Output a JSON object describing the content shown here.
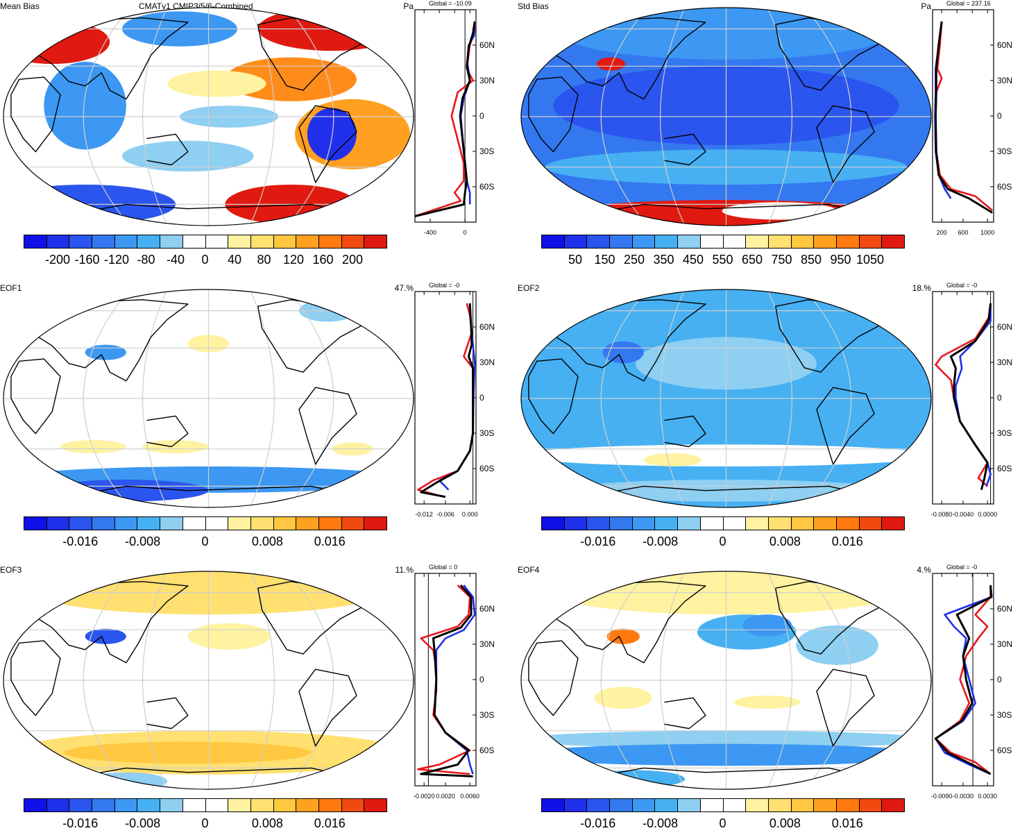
{
  "suptitle": "CMATv1 CMIP3/5/6-Combined",
  "lat_ticks": [
    "60N",
    "30N",
    "0",
    "30S",
    "60S"
  ],
  "colors": {
    "blue_dark": "#1e1ee6",
    "blue_mid": "#2e7cf0",
    "blue_light": "#3cb3ee",
    "blue_pale": "#8ed0f0",
    "yellow_pale": "#fff2a0",
    "yellow": "#ffd54a",
    "orange": "#ff8c1a",
    "red": "#e61e14",
    "land_outline": "#000000",
    "grid": "#cfcfcf",
    "line_red": "#e8161b",
    "line_blue": "#1f2ee6",
    "line_black": "#000000"
  },
  "panels": [
    {
      "id": "mean-bias",
      "title": "Mean Bias",
      "unit": "Pa",
      "global": "Global = -10.09",
      "profile_ticks": [
        "-400",
        "0"
      ],
      "colorbar_labels": [
        "-200",
        "-160",
        "-120",
        "-80",
        "-40",
        "0",
        "40",
        "80",
        "120",
        "160",
        "200"
      ],
      "colorbar_colors": [
        "#1010e8",
        "#2030ea",
        "#2a55ee",
        "#3478f0",
        "#3c98f2",
        "#46b0f2",
        "#8ecff2",
        "#ffffff",
        "#ffffff",
        "#fff2a0",
        "#ffe070",
        "#ffc840",
        "#ffa020",
        "#ff7a10",
        "#f04a10",
        "#e01a10"
      ]
    },
    {
      "id": "std-bias",
      "title": "Std Bias",
      "unit": "Pa",
      "global": "Global = 237.16",
      "profile_ticks": [
        "200",
        "600",
        "1000"
      ],
      "colorbar_labels": [
        "50",
        "150",
        "250",
        "350",
        "450",
        "550",
        "650",
        "750",
        "850",
        "950",
        "1050"
      ],
      "colorbar_colors": [
        "#1010e8",
        "#2030ea",
        "#2a55ee",
        "#3478f0",
        "#3c98f2",
        "#46b0f2",
        "#8ecff2",
        "#ffffff",
        "#ffffff",
        "#fff2a0",
        "#ffe070",
        "#ffc840",
        "#ffa020",
        "#ff7a10",
        "#f04a10",
        "#e01a10"
      ]
    },
    {
      "id": "eof1",
      "title": "EOF1",
      "unit": "47.%",
      "global": "Global = -0",
      "profile_ticks": [
        "-0.012",
        "-0.006",
        "0.000"
      ],
      "colorbar_labels": [
        "-0.016",
        "-0.008",
        "0",
        "0.008",
        "0.016"
      ],
      "colorbar_colors": [
        "#1010e8",
        "#2030ea",
        "#2a55ee",
        "#3478f0",
        "#3c98f2",
        "#46b0f2",
        "#8ecff2",
        "#ffffff",
        "#ffffff",
        "#fff2a0",
        "#ffe070",
        "#ffc840",
        "#ffa020",
        "#ff7a10",
        "#f04a10",
        "#e01a10"
      ]
    },
    {
      "id": "eof2",
      "title": "EOF2",
      "unit": "18.%",
      "global": "Global = -0",
      "profile_ticks": [
        "-0.0080",
        "-0.0040",
        "0.0000"
      ],
      "colorbar_labels": [
        "-0.016",
        "-0.008",
        "0",
        "0.008",
        "0.016"
      ],
      "colorbar_colors": [
        "#1010e8",
        "#2030ea",
        "#2a55ee",
        "#3478f0",
        "#3c98f2",
        "#46b0f2",
        "#8ecff2",
        "#ffffff",
        "#ffffff",
        "#fff2a0",
        "#ffe070",
        "#ffc840",
        "#ffa020",
        "#ff7a10",
        "#f04a10",
        "#e01a10"
      ]
    },
    {
      "id": "eof3",
      "title": "EOF3",
      "unit": "11.%",
      "global": "Global = 0",
      "profile_ticks": [
        "-0.0020",
        "0.0020",
        "0.0060"
      ],
      "colorbar_labels": [
        "-0.016",
        "-0.008",
        "0",
        "0.008",
        "0.016"
      ],
      "colorbar_colors": [
        "#1010e8",
        "#2030ea",
        "#2a55ee",
        "#3478f0",
        "#3c98f2",
        "#46b0f2",
        "#8ecff2",
        "#ffffff",
        "#ffffff",
        "#fff2a0",
        "#ffe070",
        "#ffc840",
        "#ffa020",
        "#ff7a10",
        "#f04a10",
        "#e01a10"
      ]
    },
    {
      "id": "eof4",
      "title": "EOF4",
      "unit": "4.%",
      "global": "Global = -0",
      "profile_ticks": [
        "-0.0090",
        "-0.0030",
        "0.0030"
      ],
      "colorbar_labels": [
        "-0.016",
        "-0.008",
        "0",
        "0.008",
        "0.016"
      ],
      "colorbar_colors": [
        "#1010e8",
        "#2030ea",
        "#2a55ee",
        "#3478f0",
        "#3c98f2",
        "#46b0f2",
        "#8ecff2",
        "#ffffff",
        "#ffffff",
        "#fff2a0",
        "#ffe070",
        "#ffc840",
        "#ffa020",
        "#ff7a10",
        "#f04a10",
        "#e01a10"
      ]
    }
  ]
}
